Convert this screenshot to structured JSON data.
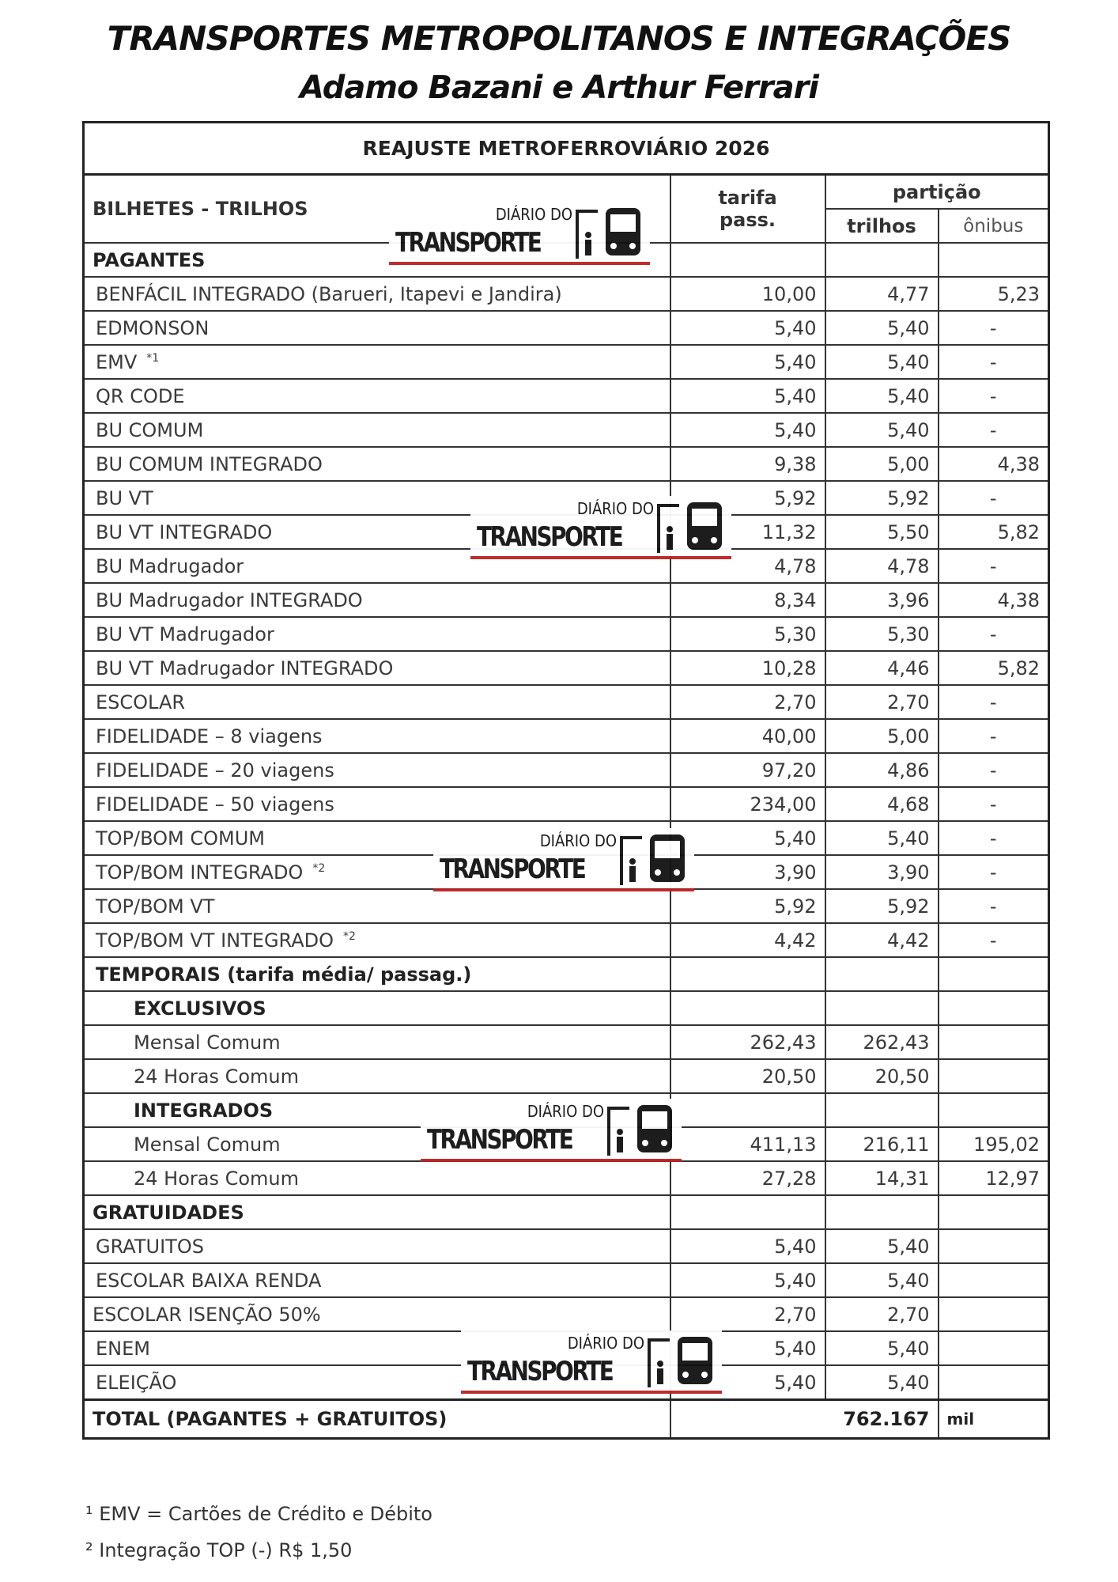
{
  "header": {
    "title": "TRANSPORTES METROPOLITANOS E INTEGRAÇÕES",
    "subtitle": "Adamo Bazani e Arthur Ferrari"
  },
  "table": {
    "title": "REAJUSTE METROFERROVIÁRIO 2026",
    "columns": {
      "name": "BILHETES - TRILHOS",
      "fare": [
        "tarifa",
        "pass."
      ],
      "split": "partição",
      "rail": "trilhos",
      "bus": "ônibus"
    },
    "pagantes": {
      "title": "PAGANTES",
      "rows": [
        {
          "name": "BENFÁCIL INTEGRADO (Barueri, Itapevi e Jandira)",
          "values": [
            "10,00",
            "4,77",
            "5,23"
          ]
        },
        {
          "name": "EDMONSON",
          "values": [
            "5,40",
            "5,40",
            "-"
          ]
        },
        {
          "name": "EMV",
          "note": "*1",
          "values": [
            "5,40",
            "5,40",
            "-"
          ]
        },
        {
          "name": "QR CODE",
          "values": [
            "5,40",
            "5,40",
            "-"
          ]
        },
        {
          "name": "BU COMUM",
          "values": [
            "5,40",
            "5,40",
            "-"
          ]
        },
        {
          "name": "BU COMUM INTEGRADO",
          "values": [
            "9,38",
            "5,00",
            "4,38"
          ]
        },
        {
          "name": "BU VT",
          "values": [
            "5,92",
            "5,92",
            "-"
          ]
        },
        {
          "name": "BU VT INTEGRADO",
          "values": [
            "11,32",
            "5,50",
            "5,82"
          ]
        },
        {
          "name": "BU Madrugador",
          "values": [
            "4,78",
            "4,78",
            "-"
          ]
        },
        {
          "name": "BU  Madrugador INTEGRADO",
          "values": [
            "8,34",
            "3,96",
            "4,38"
          ]
        },
        {
          "name": "BU VT Madrugador",
          "values": [
            "5,30",
            "5,30",
            "-"
          ]
        },
        {
          "name": "BU  VT Madrugador INTEGRADO",
          "values": [
            "10,28",
            "4,46",
            "5,82"
          ]
        },
        {
          "name": "ESCOLAR",
          "values": [
            "2,70",
            "2,70",
            "-"
          ]
        },
        {
          "name": "FIDELIDADE – 8 viagens",
          "values": [
            "40,00",
            "5,00",
            "-"
          ]
        },
        {
          "name": "FIDELIDADE – 20 viagens",
          "values": [
            "97,20",
            "4,86",
            "-"
          ]
        },
        {
          "name": "FIDELIDADE – 50 viagens",
          "values": [
            "234,00",
            "4,68",
            "-"
          ]
        },
        {
          "name": "TOP/BOM COMUM",
          "values": [
            "5,40",
            "5,40",
            "-"
          ]
        },
        {
          "name": "TOP/BOM INTEGRADO",
          "note": "*2",
          "values": [
            "3,90",
            "3,90",
            "-"
          ]
        },
        {
          "name": "TOP/BOM VT",
          "values": [
            "5,92",
            "5,92",
            "-"
          ]
        },
        {
          "name": "TOP/BOM VT INTEGRADO",
          "note": "*2",
          "values": [
            "4,42",
            "4,42",
            "-"
          ]
        }
      ]
    },
    "temporais": {
      "title": "TEMPORAIS (tarifa média/ passag.)",
      "groups": [
        {
          "title": "EXCLUSIVOS",
          "rows": [
            {
              "name": "Mensal Comum",
              "values": [
                "262,43",
                "262,43",
                null
              ]
            },
            {
              "name": "24 Horas Comum",
              "values": [
                "20,50",
                "20,50",
                null
              ]
            }
          ]
        },
        {
          "title": "INTEGRADOS",
          "rows": [
            {
              "name": "Mensal Comum",
              "values": [
                "411,13",
                "216,11",
                "195,02"
              ]
            },
            {
              "name": "24 Horas Comum",
              "values": [
                "27,28",
                "14,31",
                "12,97"
              ]
            }
          ]
        }
      ]
    },
    "gratuidades": {
      "title": "GRATUIDADES",
      "rows": [
        {
          "name": "GRATUITOS",
          "values": [
            "5,40",
            "5,40",
            null
          ]
        },
        {
          "name": "ESCOLAR BAIXA RENDA",
          "values": [
            "5,40",
            "5,40",
            null
          ]
        },
        {
          "name": "ESCOLAR ISENÇÃO 50%",
          "values": [
            "2,70",
            "2,70",
            null
          ]
        },
        {
          "name": "ENEM",
          "values": [
            "5,40",
            "5,40",
            null
          ]
        },
        {
          "name": "ELEIÇÃO",
          "values": [
            "5,40",
            "5,40",
            null
          ]
        }
      ]
    },
    "total": {
      "label": "TOTAL (PAGANTES + GRATUITOS)",
      "value": "762.167",
      "unit": "mil"
    }
  },
  "footnotes": [
    "¹ EMV = Cartões de Crédito e Débito",
    "² Integração TOP (-) R$ 1,50"
  ],
  "watermark": {
    "top": "DIÁRIO DO",
    "bottom": "TRANSPORTE"
  }
}
